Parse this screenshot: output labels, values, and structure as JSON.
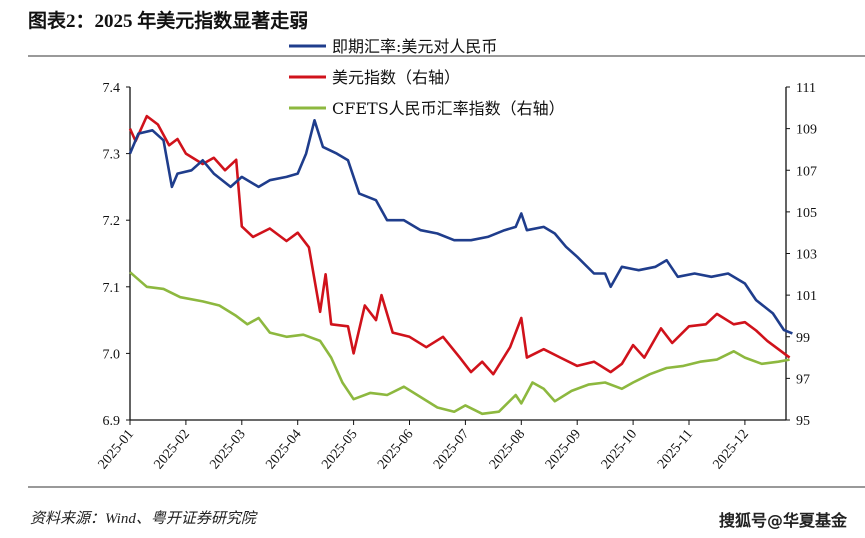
{
  "title": "图表2：2025 年美元指数显著走弱",
  "source": "资料来源：Wind、粤开证券研究院",
  "watermark": "搜狐号@华夏基金",
  "chart_data": {
    "type": "line",
    "title": "图表2：2025 年美元指数显著走弱",
    "x_note": "x values in months since 2025-01-01",
    "categories": [
      "2025-01",
      "2025-02",
      "2025-03",
      "2025-04",
      "2025-05",
      "2025-06",
      "2025-07",
      "2025-08",
      "2025-09",
      "2025-10",
      "2025-11",
      "2025-12"
    ],
    "y_left": {
      "ylim": [
        6.9,
        7.4
      ],
      "ticks": [
        "6.9",
        "7.0",
        "7.1",
        "7.2",
        "7.3",
        "7.4"
      ]
    },
    "y_right": {
      "ylim": [
        95,
        111
      ],
      "ticks": [
        "95",
        "97",
        "99",
        "101",
        "103",
        "105",
        "107",
        "109",
        "111"
      ]
    },
    "legend_position": "top-center",
    "series": [
      {
        "name": "即期汇率:美元对人民币",
        "axis": "left",
        "color": "#1f3d8c",
        "points": [
          [
            0,
            7.3
          ],
          [
            0.15,
            7.33
          ],
          [
            0.4,
            7.335
          ],
          [
            0.6,
            7.32
          ],
          [
            0.75,
            7.25
          ],
          [
            0.85,
            7.27
          ],
          [
            1.1,
            7.275
          ],
          [
            1.3,
            7.29
          ],
          [
            1.5,
            7.27
          ],
          [
            1.8,
            7.25
          ],
          [
            2.0,
            7.265
          ],
          [
            2.3,
            7.25
          ],
          [
            2.5,
            7.26
          ],
          [
            2.8,
            7.265
          ],
          [
            3.0,
            7.27
          ],
          [
            3.15,
            7.3
          ],
          [
            3.3,
            7.35
          ],
          [
            3.45,
            7.31
          ],
          [
            3.7,
            7.3
          ],
          [
            3.9,
            7.29
          ],
          [
            4.1,
            7.24
          ],
          [
            4.4,
            7.23
          ],
          [
            4.6,
            7.2
          ],
          [
            4.9,
            7.2
          ],
          [
            5.2,
            7.185
          ],
          [
            5.5,
            7.18
          ],
          [
            5.8,
            7.17
          ],
          [
            6.1,
            7.17
          ],
          [
            6.4,
            7.175
          ],
          [
            6.7,
            7.185
          ],
          [
            6.9,
            7.19
          ],
          [
            7.0,
            7.21
          ],
          [
            7.1,
            7.185
          ],
          [
            7.4,
            7.19
          ],
          [
            7.6,
            7.18
          ],
          [
            7.8,
            7.16
          ],
          [
            8.0,
            7.145
          ],
          [
            8.3,
            7.12
          ],
          [
            8.5,
            7.12
          ],
          [
            8.6,
            7.1
          ],
          [
            8.8,
            7.13
          ],
          [
            9.1,
            7.125
          ],
          [
            9.4,
            7.13
          ],
          [
            9.6,
            7.14
          ],
          [
            9.8,
            7.115
          ],
          [
            10.1,
            7.12
          ],
          [
            10.4,
            7.115
          ],
          [
            10.7,
            7.12
          ],
          [
            11.0,
            7.105
          ],
          [
            11.2,
            7.08
          ],
          [
            11.5,
            7.06
          ],
          [
            11.7,
            7.035
          ],
          [
            11.85,
            7.03
          ]
        ]
      },
      {
        "name": "美元指数（右轴）",
        "axis": "right",
        "color": "#d0121b",
        "points": [
          [
            0,
            109
          ],
          [
            0.1,
            108.4
          ],
          [
            0.3,
            109.6
          ],
          [
            0.5,
            109.2
          ],
          [
            0.7,
            108.2
          ],
          [
            0.85,
            108.5
          ],
          [
            1.0,
            107.8
          ],
          [
            1.3,
            107.3
          ],
          [
            1.5,
            107.6
          ],
          [
            1.7,
            107.0
          ],
          [
            1.9,
            107.5
          ],
          [
            2.0,
            104.3
          ],
          [
            2.2,
            103.8
          ],
          [
            2.5,
            104.2
          ],
          [
            2.8,
            103.6
          ],
          [
            3.0,
            104.0
          ],
          [
            3.2,
            103.3
          ],
          [
            3.4,
            100.2
          ],
          [
            3.5,
            102.0
          ],
          [
            3.6,
            99.6
          ],
          [
            3.9,
            99.5
          ],
          [
            4.0,
            98.2
          ],
          [
            4.2,
            100.5
          ],
          [
            4.4,
            99.8
          ],
          [
            4.5,
            101.0
          ],
          [
            4.7,
            99.2
          ],
          [
            5.0,
            99.0
          ],
          [
            5.3,
            98.5
          ],
          [
            5.6,
            99.0
          ],
          [
            5.9,
            98.0
          ],
          [
            6.1,
            97.3
          ],
          [
            6.3,
            97.8
          ],
          [
            6.5,
            97.2
          ],
          [
            6.8,
            98.5
          ],
          [
            7.0,
            99.9
          ],
          [
            7.1,
            98.0
          ],
          [
            7.4,
            98.4
          ],
          [
            7.7,
            98.0
          ],
          [
            8.0,
            97.6
          ],
          [
            8.3,
            97.8
          ],
          [
            8.6,
            97.3
          ],
          [
            8.8,
            97.7
          ],
          [
            9.0,
            98.6
          ],
          [
            9.2,
            98.0
          ],
          [
            9.5,
            99.4
          ],
          [
            9.7,
            98.7
          ],
          [
            10.0,
            99.5
          ],
          [
            10.3,
            99.6
          ],
          [
            10.5,
            100.1
          ],
          [
            10.8,
            99.6
          ],
          [
            11.0,
            99.7
          ],
          [
            11.2,
            99.3
          ],
          [
            11.4,
            98.8
          ],
          [
            11.6,
            98.4
          ],
          [
            11.8,
            98.0
          ]
        ]
      },
      {
        "name": "CFETS人民币汇率指数（右轴）",
        "axis": "right",
        "color": "#8db83f",
        "points": [
          [
            0,
            102.1
          ],
          [
            0.3,
            101.4
          ],
          [
            0.6,
            101.3
          ],
          [
            0.9,
            100.9
          ],
          [
            1.3,
            100.7
          ],
          [
            1.6,
            100.5
          ],
          [
            1.9,
            100.0
          ],
          [
            2.1,
            99.6
          ],
          [
            2.3,
            99.9
          ],
          [
            2.5,
            99.2
          ],
          [
            2.8,
            99.0
          ],
          [
            3.1,
            99.1
          ],
          [
            3.4,
            98.8
          ],
          [
            3.6,
            98.0
          ],
          [
            3.8,
            96.8
          ],
          [
            4.0,
            96.0
          ],
          [
            4.3,
            96.3
          ],
          [
            4.6,
            96.2
          ],
          [
            4.9,
            96.6
          ],
          [
            5.2,
            96.1
          ],
          [
            5.5,
            95.6
          ],
          [
            5.8,
            95.4
          ],
          [
            6.0,
            95.7
          ],
          [
            6.3,
            95.3
          ],
          [
            6.6,
            95.4
          ],
          [
            6.9,
            96.2
          ],
          [
            7.0,
            95.8
          ],
          [
            7.2,
            96.8
          ],
          [
            7.4,
            96.5
          ],
          [
            7.6,
            95.9
          ],
          [
            7.9,
            96.4
          ],
          [
            8.2,
            96.7
          ],
          [
            8.5,
            96.8
          ],
          [
            8.8,
            96.5
          ],
          [
            9.0,
            96.8
          ],
          [
            9.3,
            97.2
          ],
          [
            9.6,
            97.5
          ],
          [
            9.9,
            97.6
          ],
          [
            10.2,
            97.8
          ],
          [
            10.5,
            97.9
          ],
          [
            10.8,
            98.3
          ],
          [
            11.0,
            98.0
          ],
          [
            11.3,
            97.7
          ],
          [
            11.6,
            97.8
          ],
          [
            11.8,
            97.9
          ]
        ]
      }
    ]
  }
}
